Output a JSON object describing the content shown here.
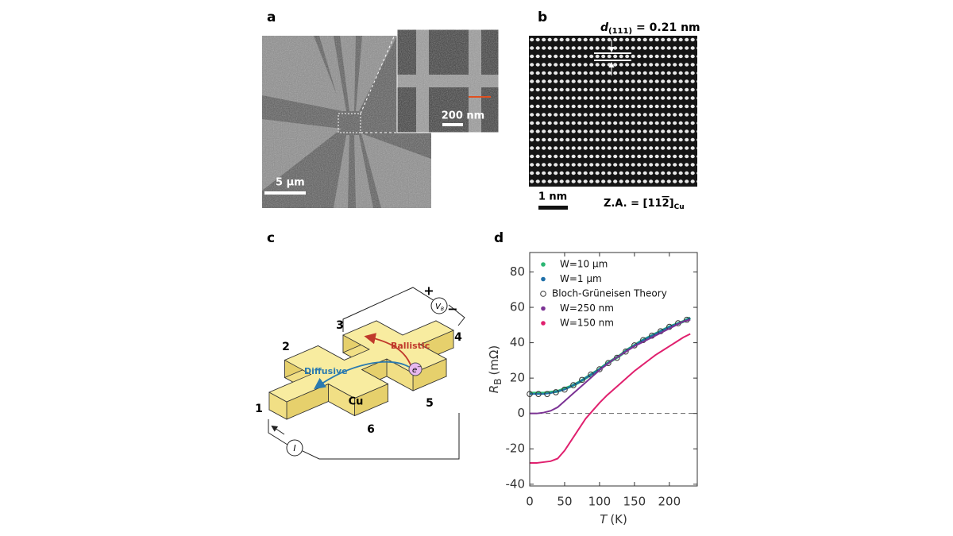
{
  "panels": {
    "a": {
      "label": "a",
      "scale_bar": "5 µm",
      "inset_scale_bar": "200 nm"
    },
    "b": {
      "label": "b",
      "spacing_symbol": "d",
      "spacing_subscript": "(111)",
      "spacing_text": "= 0.21 nm",
      "scale_bar": "1 nm",
      "zone_axis": "Z.A. = [11",
      "zone_axis_bar": "2",
      "zone_axis_end": "]",
      "zone_axis_subscript": "Cu"
    },
    "c": {
      "label": "c",
      "terminals": [
        "1",
        "2",
        "3",
        "4",
        "5",
        "6"
      ],
      "ballistic": "Ballistic",
      "diffusive": "Diffusive",
      "material": "Cu",
      "plus": "+",
      "minus": "−",
      "current": "I",
      "voltage": "V",
      "voltage_subscript": "B",
      "electron": "e",
      "electron_charge": "−"
    },
    "d": {
      "label": "d"
    }
  },
  "chart_data": {
    "type": "line",
    "xlabel": {
      "symbol": "T",
      "unit": "(K)"
    },
    "ylabel": {
      "symbol": "R",
      "subscript": "B",
      "unit": "(mΩ)"
    },
    "xlim": [
      0,
      240
    ],
    "ylim": [
      -41,
      91
    ],
    "xticks": [
      0,
      50,
      100,
      150,
      200
    ],
    "yticks": [
      -40,
      -20,
      0,
      20,
      40,
      60,
      80
    ],
    "reference_line": 0,
    "legend": "upper left",
    "x": [
      0,
      10,
      20,
      30,
      40,
      50,
      60,
      70,
      80,
      90,
      100,
      110,
      120,
      130,
      140,
      150,
      160,
      170,
      180,
      190,
      200,
      210,
      220,
      230
    ],
    "series": [
      {
        "name": "W=10 µm",
        "color": "#2bb673",
        "style": "line",
        "values": [
          11.5,
          11.5,
          11.5,
          12,
          12.5,
          14,
          15.5,
          17.5,
          20,
          22.5,
          25,
          28,
          30.5,
          33,
          36,
          38.5,
          41,
          43,
          45,
          47,
          49,
          50.5,
          52,
          54
        ]
      },
      {
        "name": "W=1 µm",
        "color": "#1f6fa8",
        "style": "line",
        "values": [
          11,
          11,
          11,
          11.5,
          12.5,
          13.5,
          15.5,
          17.5,
          20,
          22.5,
          25,
          28,
          30.5,
          33,
          36,
          38.5,
          41,
          43,
          45,
          47,
          49,
          50.5,
          52,
          54
        ]
      },
      {
        "name": "Bloch-Grüneisen Theory",
        "color": "#333333",
        "style": "circles",
        "x": [
          0,
          12.5,
          25,
          37.5,
          50,
          62.5,
          75,
          87.5,
          100,
          112.5,
          125,
          137.5,
          150,
          162.5,
          175,
          187.5,
          200,
          212.5,
          225
        ],
        "values": [
          11,
          11,
          11,
          12,
          13.5,
          16,
          19,
          22,
          25,
          28.5,
          31.5,
          35,
          38.5,
          41.5,
          44,
          46.5,
          49,
          51,
          53
        ]
      },
      {
        "name": "W=250 nm",
        "color": "#7b3294",
        "style": "line",
        "values": [
          0,
          0,
          0.5,
          1.5,
          3.5,
          7,
          10.5,
          14,
          17.5,
          21,
          24.5,
          27.5,
          30.5,
          33,
          35.5,
          38,
          40,
          42,
          44,
          46,
          48,
          50,
          52,
          53
        ]
      },
      {
        "name": "W=150 nm",
        "color": "#e0206e",
        "style": "line",
        "values": [
          -28,
          -28,
          -27.5,
          -27,
          -25.5,
          -21,
          -15,
          -9,
          -3,
          1.5,
          6,
          10,
          13.5,
          17,
          20.5,
          24,
          27,
          30,
          33,
          35.5,
          38,
          40.5,
          43,
          45
        ]
      }
    ]
  }
}
